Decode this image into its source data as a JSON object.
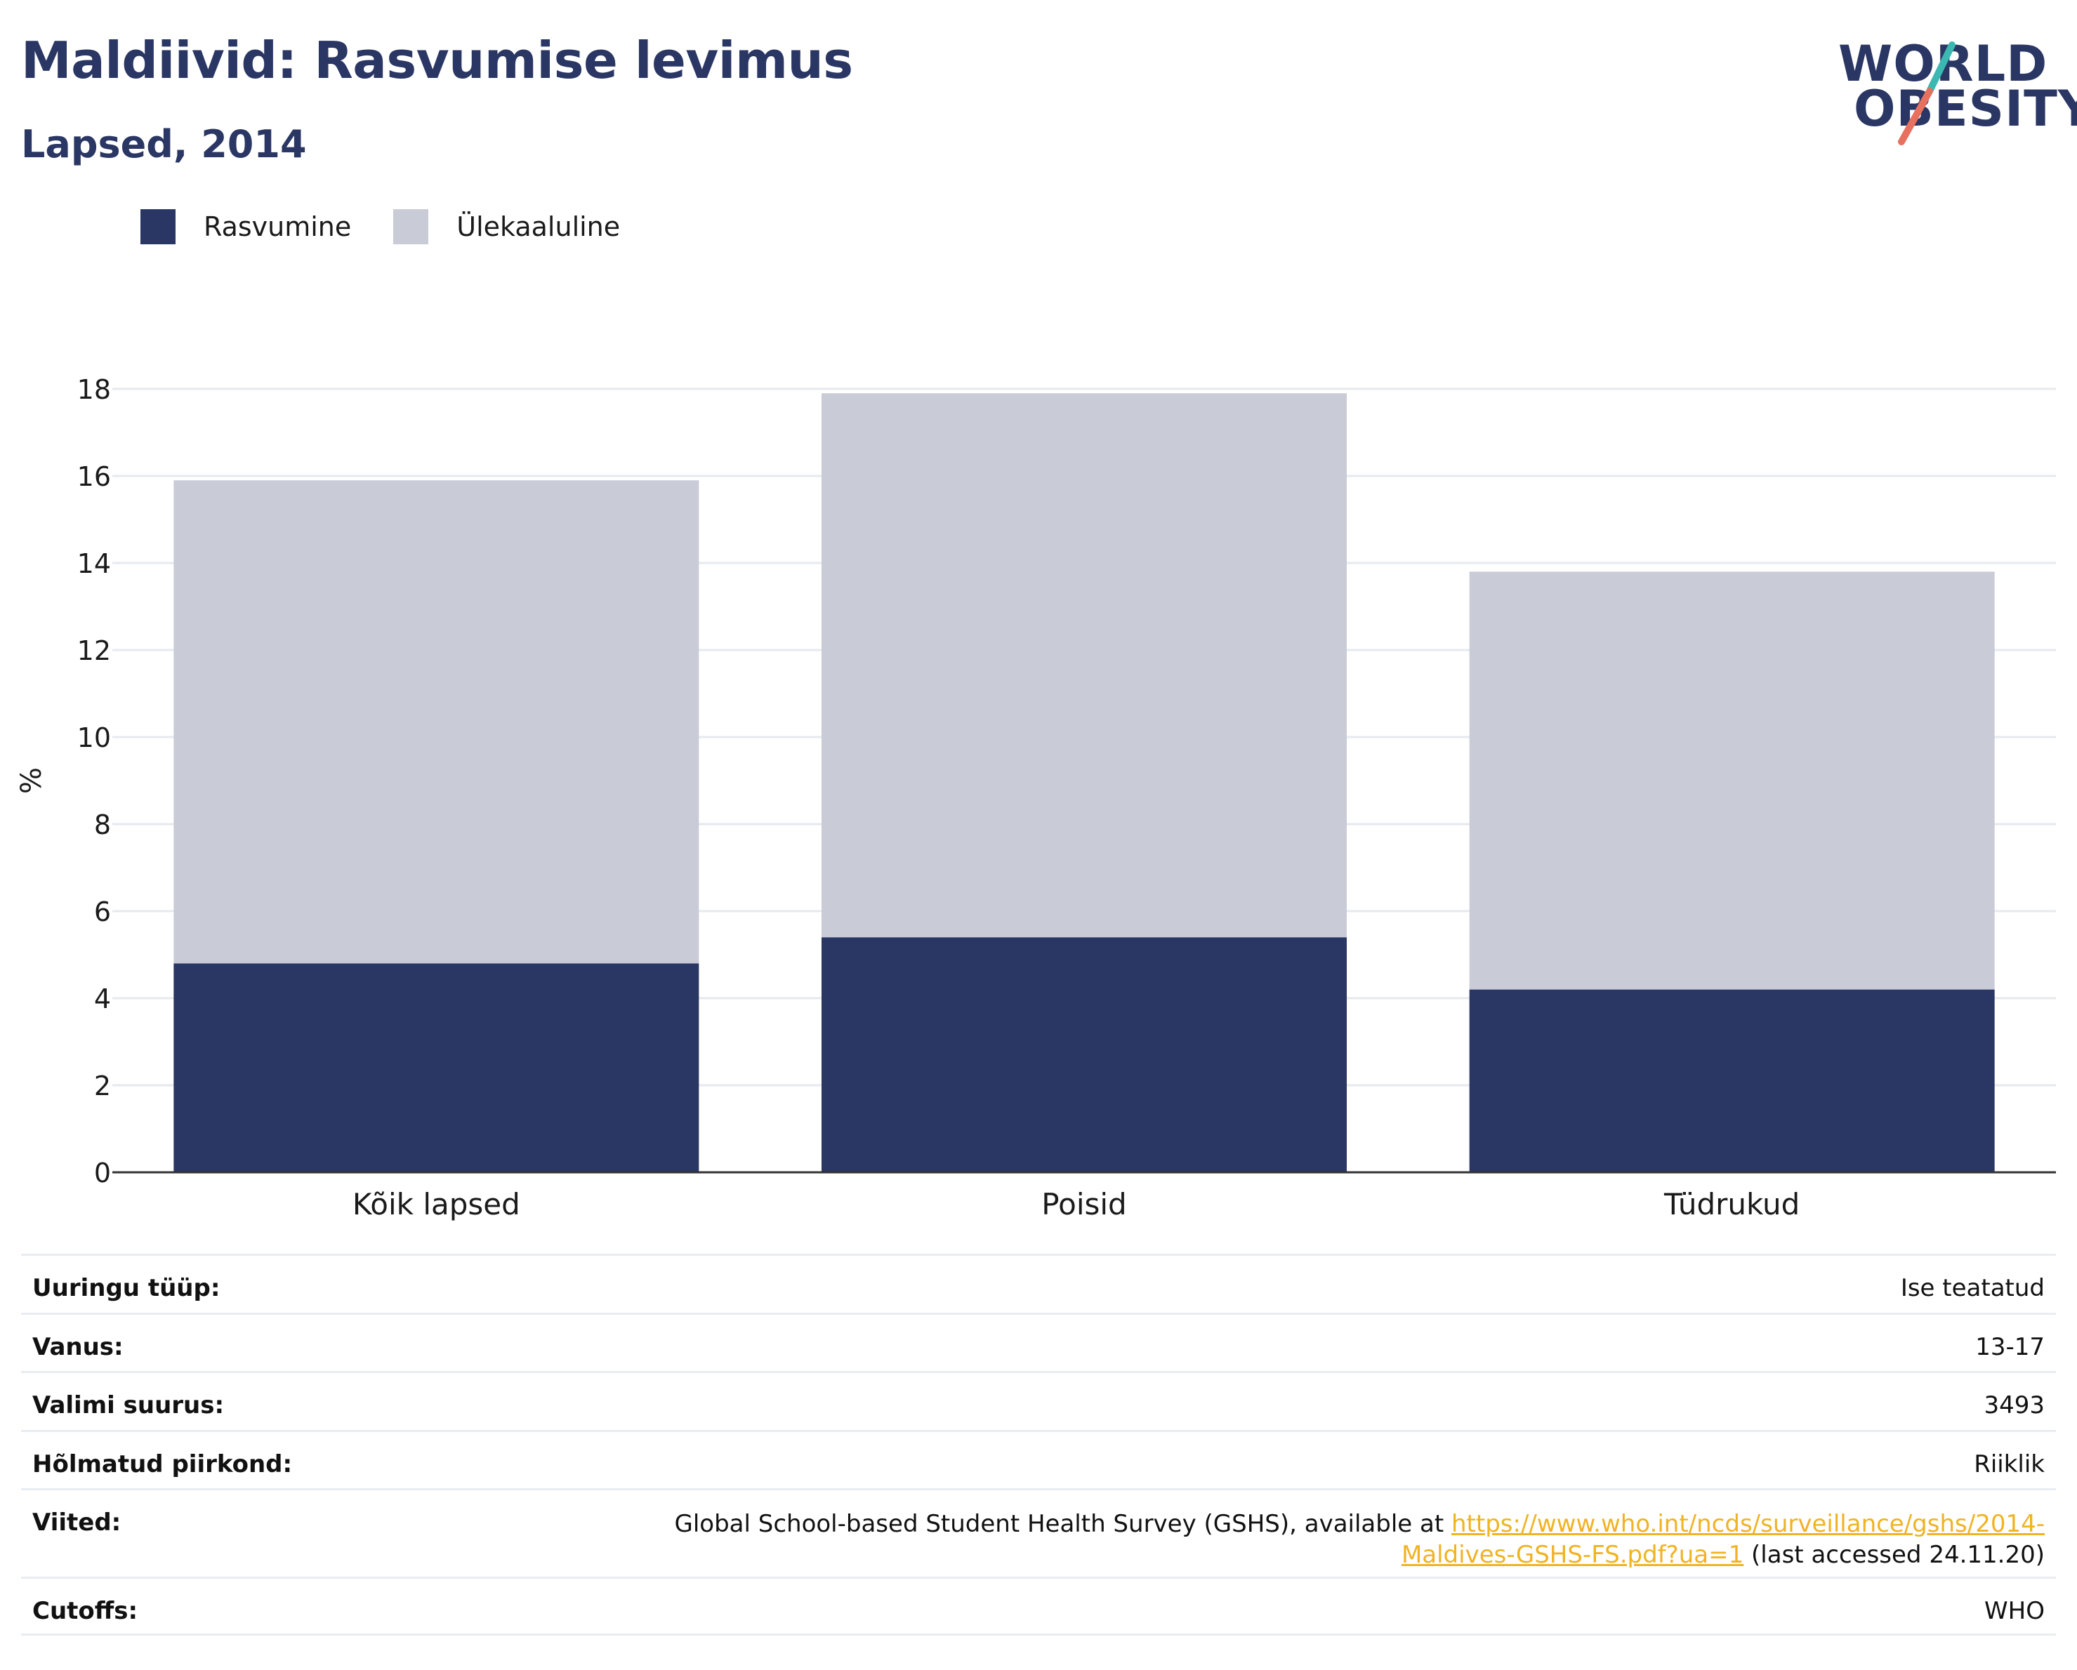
{
  "header": {
    "title": "Maldiivid: Rasvumise levimus",
    "subtitle": "Lapsed, 2014"
  },
  "logo": {
    "line1": "WORLD",
    "line2": "OBESITY",
    "accent_teal": "#3bb8b1",
    "accent_coral": "#e8705e"
  },
  "legend": [
    {
      "label": "Rasvumine",
      "color": "#2a3663"
    },
    {
      "label": "Ülekaaluline",
      "color": "#c9cbd7"
    }
  ],
  "chart_data": {
    "type": "bar",
    "stacked": true,
    "title": "",
    "xlabel": "",
    "ylabel": "%",
    "categories": [
      "Kõik lapsed",
      "Poisid",
      "Tüdrukud"
    ],
    "series": [
      {
        "name": "Rasvumine",
        "color": "#2a3663",
        "values": [
          4.8,
          5.4,
          4.2
        ]
      },
      {
        "name": "Ülekaaluline",
        "color": "#c9cbd7",
        "values": [
          11.1,
          12.5,
          9.6
        ]
      }
    ],
    "totals": [
      15.9,
      17.9,
      13.8
    ],
    "ylim": [
      0,
      18
    ],
    "yticks": [
      "0",
      "2",
      "4",
      "6",
      "8",
      "10",
      "12",
      "14",
      "16",
      "18"
    ],
    "grid": true,
    "legend_position": "top-left"
  },
  "info": {
    "rows": [
      {
        "label": "Uuringu tüüp:",
        "value": "Ise teatatud"
      },
      {
        "label": "Vanus:",
        "value": "13-17"
      },
      {
        "label": "Valimi suurus:",
        "value": "3493"
      },
      {
        "label": "Hõlmatud piirkond:",
        "value": "Riiklik"
      }
    ],
    "reference": {
      "label": "Viited:",
      "text_before": "Global School-based Student Health Survey (GSHS), available at ",
      "link": "https://www.who.int/ncds/surveillance/gshs/2014-Maldives-GSHS-FS.pdf?ua=1",
      "text_after": " (last accessed 24.11.20)"
    },
    "cutoffs": {
      "label": "Cutoffs:",
      "value": "WHO"
    }
  }
}
